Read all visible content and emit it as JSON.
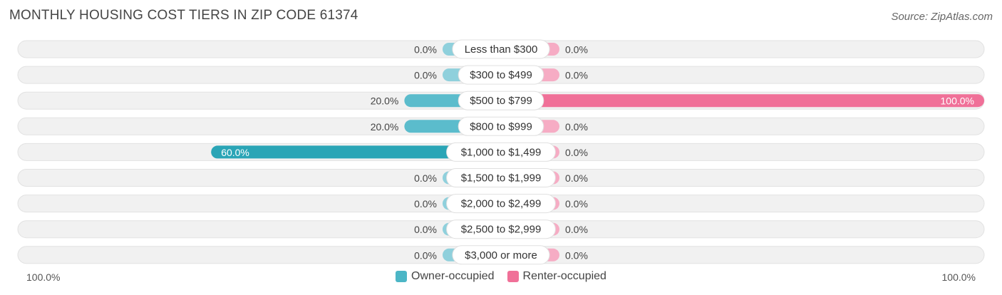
{
  "title": "MONTHLY HOUSING COST TIERS IN ZIP CODE 61374",
  "source": "Source: ZipAtlas.com",
  "axis": {
    "left_label": "100.0%",
    "right_label": "100.0%"
  },
  "colors": {
    "owner": "#5bbccc",
    "owner_light": "#8fd0dc",
    "owner_strong": "#2aa5b6",
    "renter": "#f07098",
    "renter_light": "#f6acc4",
    "track": "#f1f1f1"
  },
  "legend": [
    {
      "label": "Owner-occupied",
      "color": "#4cb6c6"
    },
    {
      "label": "Renter-occupied",
      "color": "#f07098"
    }
  ],
  "chart_data": {
    "type": "bar",
    "orientation": "diverging-horizontal",
    "xlim": [
      -100,
      100
    ],
    "categories": [
      "Less than $300",
      "$300 to $499",
      "$500 to $799",
      "$800 to $999",
      "$1,000 to $1,499",
      "$1,500 to $1,999",
      "$2,000 to $2,499",
      "$2,500 to $2,999",
      "$3,000 or more"
    ],
    "series": [
      {
        "name": "Owner-occupied",
        "values": [
          0.0,
          0.0,
          20.0,
          20.0,
          60.0,
          0.0,
          0.0,
          0.0,
          0.0
        ],
        "labels": [
          "0.0%",
          "0.0%",
          "20.0%",
          "20.0%",
          "60.0%",
          "0.0%",
          "0.0%",
          "0.0%",
          "0.0%"
        ]
      },
      {
        "name": "Renter-occupied",
        "values": [
          0.0,
          0.0,
          100.0,
          0.0,
          0.0,
          0.0,
          0.0,
          0.0,
          0.0
        ],
        "labels": [
          "0.0%",
          "0.0%",
          "100.0%",
          "0.0%",
          "0.0%",
          "0.0%",
          "0.0%",
          "0.0%",
          "0.0%"
        ]
      }
    ]
  }
}
